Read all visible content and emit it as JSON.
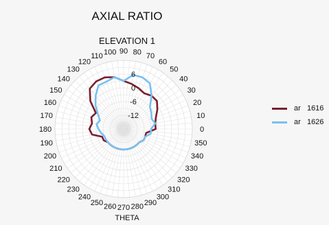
{
  "chart_data": {
    "type": "line",
    "subtype": "polar",
    "title": "AXIAL RATIO",
    "subtitle": "ELEVATION 1",
    "xlabel": "THETA",
    "angle_ticks": [
      0,
      10,
      20,
      30,
      40,
      50,
      60,
      70,
      80,
      90,
      100,
      110,
      120,
      130,
      140,
      150,
      160,
      170,
      180,
      190,
      200,
      210,
      220,
      230,
      240,
      250,
      260,
      270,
      280,
      290,
      300,
      310,
      320,
      330,
      340,
      350
    ],
    "radial_ticks": [
      -12,
      -6,
      0,
      6
    ],
    "radial_range": [
      -18,
      12
    ],
    "angle_unit": "deg",
    "grid": true,
    "legend_position": "right",
    "series": [
      {
        "name": "ar   1616",
        "color": "#7a1f2e",
        "theta": [
          0,
          10,
          20,
          30,
          40,
          50,
          60,
          70,
          80,
          90,
          100,
          110,
          120,
          130,
          140,
          150,
          160,
          170,
          180,
          190,
          200,
          210,
          220,
          230,
          240,
          250,
          260,
          270,
          280,
          290,
          300,
          310,
          320,
          330,
          340,
          350
        ],
        "r": [
          -4,
          -4,
          -3,
          -1,
          1,
          1,
          0,
          1,
          2,
          3,
          5,
          6,
          6,
          5,
          1,
          -4,
          -3,
          -4,
          -3,
          -4,
          -8,
          -8,
          -9,
          -9,
          -9,
          -9,
          -9,
          -9,
          -9,
          -9,
          -9,
          -9,
          -9,
          -8,
          -8,
          -8
        ]
      },
      {
        "name": "ar   1626",
        "color": "#78c0f0",
        "theta": [
          0,
          10,
          20,
          30,
          40,
          50,
          60,
          70,
          80,
          90,
          100,
          110,
          120,
          130,
          140,
          150,
          160,
          170,
          180,
          190,
          200,
          210,
          220,
          230,
          240,
          250,
          260,
          270,
          280,
          290,
          300,
          310,
          320,
          330,
          340,
          350
        ],
        "r": [
          -6,
          -4,
          -5,
          -4,
          -3,
          1,
          5,
          6,
          6,
          3,
          5,
          4,
          4,
          1,
          -2,
          -5,
          -7,
          -6,
          -7,
          -8,
          -9,
          -9,
          -9,
          -9,
          -9,
          -9,
          -9,
          -9,
          -9,
          -9,
          -9,
          -9,
          -9,
          -8,
          -8,
          -6
        ]
      }
    ]
  }
}
